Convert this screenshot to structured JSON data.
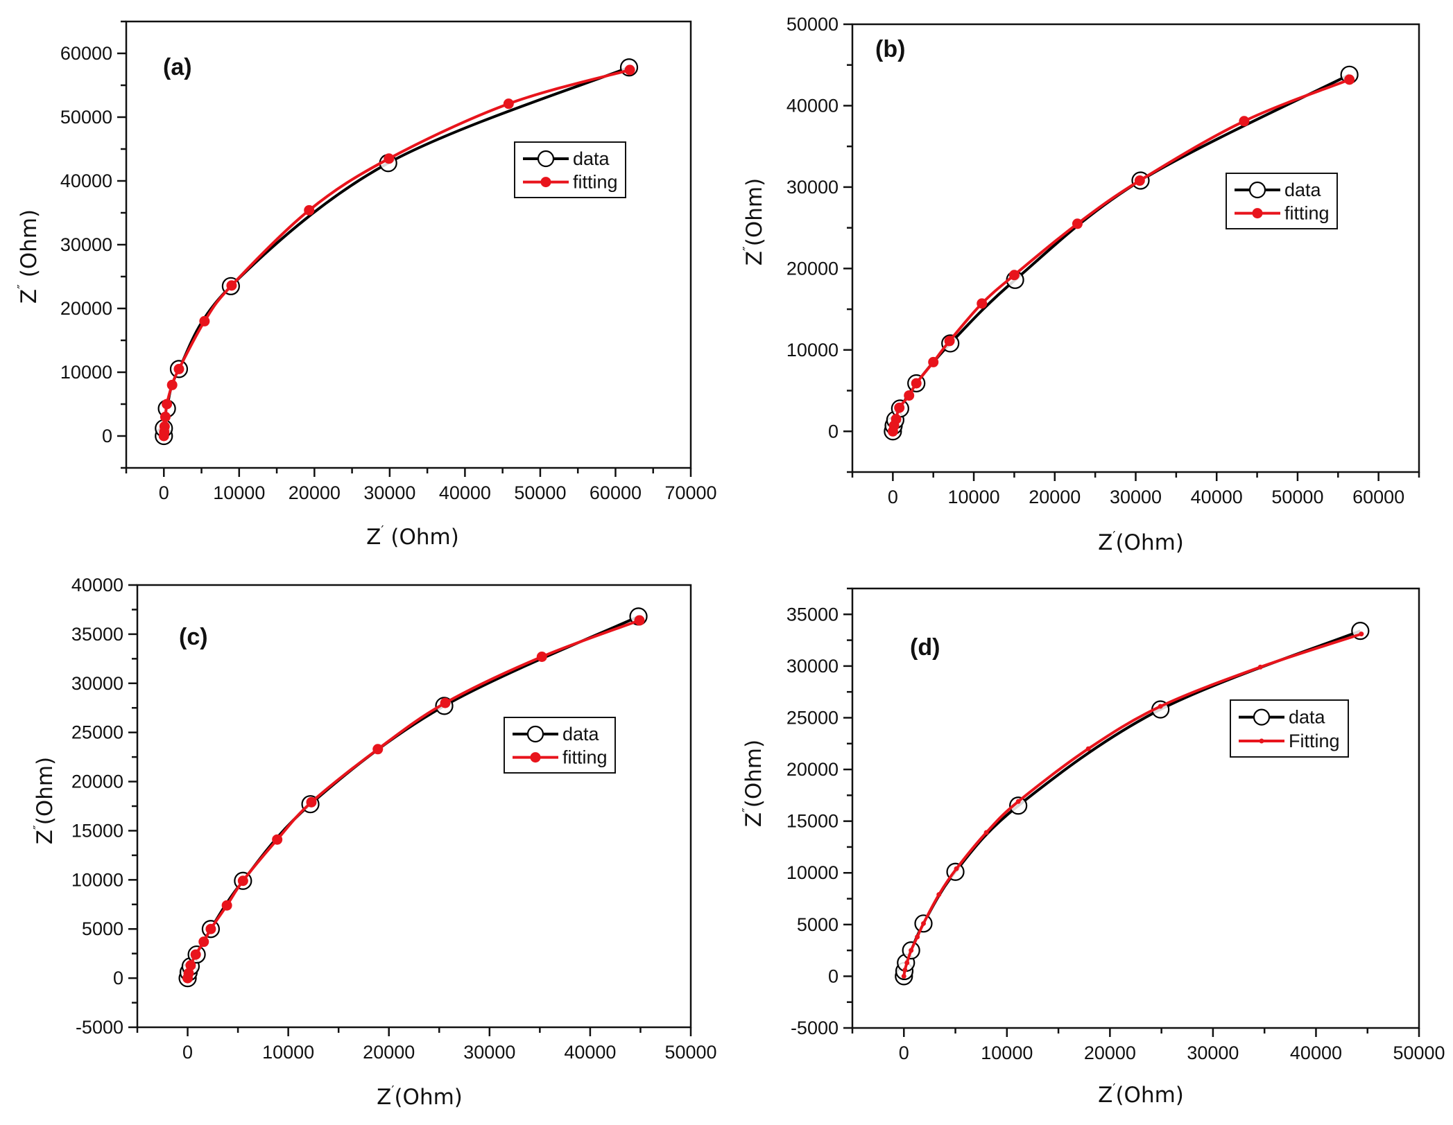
{
  "figure": {
    "colors": {
      "data": "#000000",
      "fitting": "#e8141c",
      "axis": "#111111",
      "background": "#ffffff"
    }
  },
  "chart_data": [
    {
      "id": "a",
      "type": "line",
      "panel_label": "(a)",
      "xlabel": "Z' (Ohm)",
      "ylabel": "Z'' (Ohm)",
      "xlim": [
        -5000,
        70000
      ],
      "ylim": [
        -5000,
        65000
      ],
      "xticks": [
        0,
        10000,
        20000,
        30000,
        40000,
        50000,
        60000,
        70000
      ],
      "yticks": [
        0,
        10000,
        20000,
        30000,
        40000,
        50000,
        60000
      ],
      "grid": false,
      "legend_placement": "upper-right",
      "series": [
        {
          "name": "data",
          "marker": "open-circle",
          "color": "#000000",
          "x": [
            0,
            0,
            400,
            2000,
            8900,
            29800,
            61800
          ],
          "y": [
            0,
            1200,
            4300,
            10500,
            23500,
            42800,
            57800
          ]
        },
        {
          "name": "fitting",
          "marker": "filled-circle",
          "color": "#e8141c",
          "x": [
            0,
            50,
            100,
            200,
            400,
            1100,
            2000,
            5400,
            9000,
            19300,
            29900,
            45800,
            61900
          ],
          "y": [
            0,
            600,
            1500,
            3000,
            5000,
            8000,
            10500,
            18000,
            23600,
            35400,
            43500,
            52100,
            57400
          ]
        }
      ]
    },
    {
      "id": "b",
      "type": "line",
      "panel_label": "(b)",
      "xlabel": "Z'(Ohm)",
      "ylabel": "Z''(Ohm)",
      "xlim": [
        -5000,
        65000
      ],
      "ylim": [
        -5000,
        50000
      ],
      "xticks": [
        0,
        10000,
        20000,
        30000,
        40000,
        50000,
        60000
      ],
      "yticks": [
        0,
        10000,
        20000,
        30000,
        40000,
        50000
      ],
      "grid": false,
      "legend_placement": "upper-right",
      "series": [
        {
          "name": "data",
          "marker": "open-circle",
          "color": "#000000",
          "x": [
            0,
            100,
            300,
            900,
            2900,
            7100,
            15100,
            30600,
            56400
          ],
          "y": [
            0,
            700,
            1400,
            2800,
            5900,
            10800,
            18600,
            30800,
            43800
          ]
        },
        {
          "name": "fitting",
          "marker": "filled-circle",
          "color": "#e8141c",
          "x": [
            0,
            150,
            400,
            800,
            2000,
            2900,
            5000,
            7000,
            11000,
            15000,
            22800,
            30500,
            43400,
            56400
          ],
          "y": [
            0,
            700,
            1500,
            2900,
            4400,
            5900,
            8500,
            11100,
            15700,
            19200,
            25500,
            30800,
            38100,
            43200
          ]
        }
      ]
    },
    {
      "id": "c",
      "type": "line",
      "panel_label": "(c)",
      "xlabel": "Z'(Ohm)",
      "ylabel": "Z''(Ohm)",
      "xlim": [
        -5000,
        50000
      ],
      "ylim": [
        -5000,
        40000
      ],
      "xticks": [
        0,
        10000,
        20000,
        30000,
        40000,
        50000
      ],
      "yticks": [
        -5000,
        0,
        5000,
        10000,
        15000,
        20000,
        25000,
        30000,
        35000,
        40000
      ],
      "grid": false,
      "legend_placement": "upper-right",
      "series": [
        {
          "name": "data",
          "marker": "open-circle",
          "color": "#000000",
          "x": [
            0,
            100,
            300,
            900,
            2300,
            5500,
            12200,
            25500,
            44800
          ],
          "y": [
            0,
            600,
            1200,
            2400,
            5000,
            9900,
            17700,
            27700,
            36800
          ]
        },
        {
          "name": "fitting",
          "marker": "filled-circle",
          "color": "#e8141c",
          "x": [
            0,
            100,
            300,
            800,
            1600,
            2300,
            3900,
            5500,
            8900,
            12300,
            18900,
            25600,
            35200,
            44900
          ],
          "y": [
            0,
            500,
            1300,
            2400,
            3700,
            5000,
            7400,
            9900,
            14100,
            17900,
            23300,
            28000,
            32700,
            36400
          ]
        }
      ]
    },
    {
      "id": "d",
      "type": "line",
      "panel_label": "(d)",
      "xlabel": "Z'(Ohm)",
      "ylabel": "Z''(Ohm)",
      "xlim": [
        -5000,
        50000
      ],
      "ylim": [
        -5000,
        37500
      ],
      "xticks": [
        0,
        10000,
        20000,
        30000,
        40000,
        50000
      ],
      "yticks": [
        -5000,
        0,
        5000,
        10000,
        15000,
        20000,
        25000,
        30000,
        35000
      ],
      "grid": false,
      "legend_placement": "upper-right",
      "series": [
        {
          "name": "data",
          "marker": "open-circle",
          "color": "#000000",
          "x": [
            0,
            50,
            200,
            700,
            1900,
            5000,
            11100,
            24900,
            44300
          ],
          "y": [
            0,
            500,
            1300,
            2500,
            5100,
            10100,
            16500,
            25800,
            33400
          ]
        },
        {
          "name": "Fitting",
          "marker": "small-dot",
          "color": "#e8141c",
          "x": [
            0,
            100,
            300,
            700,
            1300,
            1900,
            3400,
            5100,
            8000,
            11100,
            17900,
            24900,
            34600,
            44400
          ],
          "y": [
            0,
            600,
            1300,
            2500,
            3800,
            5100,
            7900,
            10400,
            13900,
            16900,
            22000,
            26100,
            29900,
            33100
          ]
        }
      ]
    }
  ]
}
